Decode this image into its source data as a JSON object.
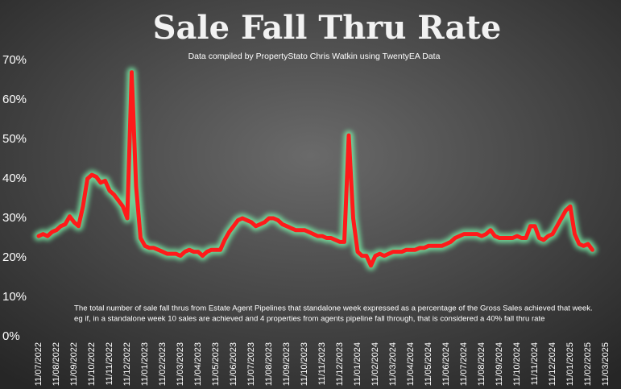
{
  "chart_data": {
    "type": "line",
    "title": "Sale Fall Thru Rate",
    "subtitle": "Data compiled by PropertyStato Chris Watkin using TwentyEA Data",
    "annotations": [
      "The total number of sale fall thrus from Estate Agent Pipelines that standalone week expressed as a percentage of the Gross Sales achieved that week.",
      "eg if, in a standalone week 10 sales are achieved and 4 properties from agents pipeline fall through, that is considered a 40%  fall thru rate"
    ],
    "categories": [
      "11/07/2022",
      null,
      null,
      null,
      "11/08/2022",
      null,
      null,
      null,
      "11/09/2022",
      null,
      null,
      null,
      "11/10/2022",
      null,
      null,
      null,
      "11/11/2022",
      null,
      null,
      null,
      "11/12/2022",
      null,
      null,
      null,
      "11/01/2023",
      null,
      null,
      null,
      "11/02/2023",
      null,
      null,
      null,
      "11/03/2023",
      null,
      null,
      null,
      "11/04/2023",
      null,
      null,
      null,
      "11/05/2023",
      null,
      null,
      null,
      "11/06/2023",
      null,
      null,
      null,
      "11/07/2023",
      null,
      null,
      null,
      "11/08/2023",
      null,
      null,
      null,
      "11/09/2023",
      null,
      null,
      null,
      "11/10/2023",
      null,
      null,
      null,
      "11/11/2023",
      null,
      null,
      null,
      "11/12/2023",
      null,
      null,
      null,
      "11/01/2024",
      null,
      null,
      null,
      "11/02/2024",
      null,
      null,
      null,
      "11/03/2024",
      null,
      null,
      null,
      "11/04/2024",
      null,
      null,
      null,
      "11/05/2024",
      null,
      null,
      null,
      "11/06/2024",
      null,
      null,
      null,
      "11/07/2024",
      null,
      null,
      null,
      "11/08/2024",
      null,
      null,
      null,
      "11/09/2024",
      null,
      null,
      null,
      "11/10/2024",
      null,
      null,
      null,
      "11/11/2024",
      null,
      null,
      null,
      "11/12/2024",
      null,
      null,
      null,
      "11/01/2025",
      null,
      null,
      null,
      "11/02/2025",
      null,
      null,
      null,
      "11/03/2025"
    ],
    "series": [
      {
        "name": "Sale Fall Thru Rate",
        "color": "#ff1a1a",
        "values": [
          25.5,
          26,
          25.5,
          26.5,
          27,
          28,
          28.5,
          30.5,
          29,
          28,
          33,
          40,
          41,
          40.5,
          39,
          39.5,
          37,
          36,
          34.5,
          33,
          30,
          67,
          38,
          25,
          23,
          22.5,
          22.5,
          22,
          21.5,
          21,
          21,
          21,
          20.5,
          21.5,
          22,
          21.5,
          21.5,
          20.5,
          21.5,
          22,
          22,
          22,
          24.5,
          26.5,
          28,
          29.5,
          30,
          29.5,
          29,
          28,
          28.5,
          29,
          30,
          30,
          29.5,
          28.5,
          28,
          27.5,
          27,
          27,
          27,
          26.5,
          26,
          25.5,
          25.5,
          25,
          25,
          24.5,
          24,
          24,
          51,
          30,
          21.5,
          20.5,
          20.5,
          18,
          20.5,
          21,
          20.5,
          21,
          21.5,
          21.5,
          21.5,
          22,
          22,
          22,
          22.5,
          22.5,
          23,
          23,
          23,
          23,
          23.5,
          24,
          25,
          25.5,
          26,
          26,
          26,
          26,
          25.5,
          26,
          27,
          25.5,
          25,
          25,
          25,
          25,
          25.5,
          25,
          25,
          28,
          28,
          25,
          24.5,
          25.5,
          26,
          28,
          30,
          32,
          33,
          26,
          23.5,
          23,
          23.5,
          22,
          null,
          null,
          null
        ]
      }
    ],
    "ylim": [
      0,
      70
    ],
    "yticks": [
      {
        "value": 0,
        "label": "0%"
      },
      {
        "value": 10,
        "label": "10%"
      },
      {
        "value": 20,
        "label": "20%"
      },
      {
        "value": 30,
        "label": "30%"
      },
      {
        "value": 40,
        "label": "40%"
      },
      {
        "value": 50,
        "label": "50%"
      },
      {
        "value": 60,
        "label": "60%"
      },
      {
        "value": 70,
        "label": "70%"
      }
    ],
    "glow_color": "#7dffb0"
  }
}
